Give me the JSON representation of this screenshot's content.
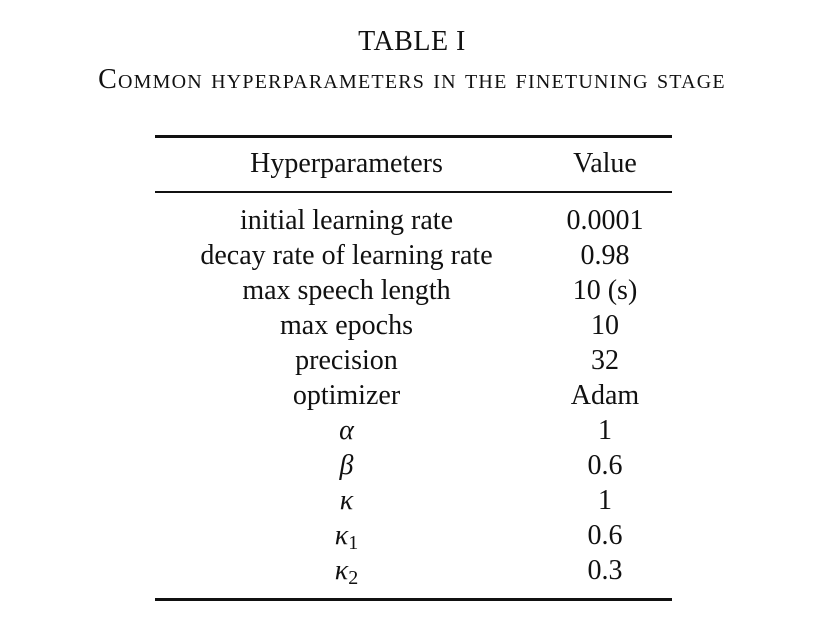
{
  "caption": {
    "label": "TABLE I",
    "title": "Common hyperparameters in the finetuning stage"
  },
  "table": {
    "headers": {
      "name": "Hyperparameters",
      "value": "Value"
    },
    "rows": [
      {
        "name": "initial learning rate",
        "value": "0.0001"
      },
      {
        "name": "decay rate of learning rate",
        "value": "0.98"
      },
      {
        "name": "max speech length",
        "value": "10 (s)"
      },
      {
        "name": "max epochs",
        "value": "10"
      },
      {
        "name": "precision",
        "value": "32"
      },
      {
        "name": "optimizer",
        "value": "Adam"
      },
      {
        "name": "α",
        "value": "1"
      },
      {
        "name": "β",
        "value": "0.6"
      },
      {
        "name": "κ",
        "value": "1"
      },
      {
        "name": "κ",
        "subscript": "1",
        "value": "0.6"
      },
      {
        "name": "κ",
        "subscript": "2",
        "value": "0.3"
      }
    ]
  }
}
